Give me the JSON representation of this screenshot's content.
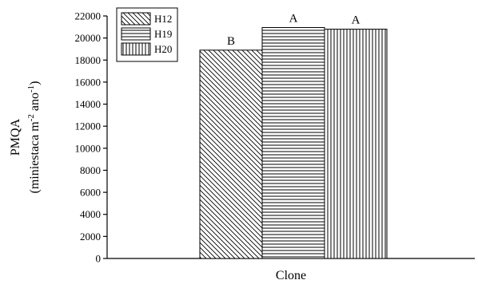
{
  "chart_data": {
    "type": "bar",
    "xlabel": "Clone",
    "ylabel": {
      "line1": "PMQA",
      "line2_prefix": "(miniestaca m",
      "sup1": "-2",
      "line2_middle": " ano",
      "sup2": "-1",
      "line2_suffix": ")"
    },
    "ylim": [
      0,
      22000
    ],
    "yticks": [
      0,
      2000,
      4000,
      6000,
      8000,
      10000,
      12000,
      14000,
      16000,
      18000,
      20000,
      22000
    ],
    "ytick_labels": [
      "0",
      "2000",
      "4000",
      "6000",
      "8000",
      "10000",
      "12000",
      "14000",
      "16000",
      "18000",
      "20000",
      "22000"
    ],
    "series": [
      {
        "name": "H12",
        "value": 18900,
        "label": "B",
        "pattern": "diagonal"
      },
      {
        "name": "H19",
        "value": 20950,
        "label": "A",
        "pattern": "horizontal"
      },
      {
        "name": "H20",
        "value": 20800,
        "label": "A",
        "pattern": "vertical"
      }
    ],
    "legend_position": "top-left"
  }
}
